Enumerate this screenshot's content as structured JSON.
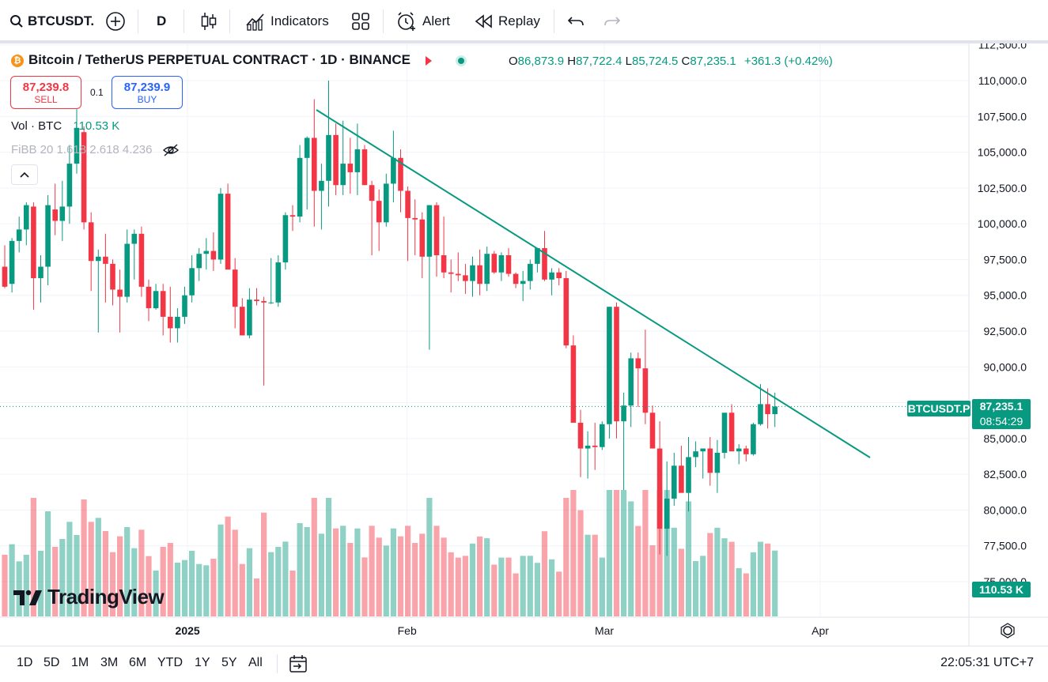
{
  "toolbar": {
    "symbol": "BTCUSDT.",
    "interval": "D",
    "indicators": "Indicators",
    "alert": "Alert",
    "replay": "Replay"
  },
  "legend": {
    "title": "Bitcoin / TetherUS PERPETUAL CONTRACT · 1D · BINANCE",
    "o_key": "O",
    "o_val": "86,873.9",
    "h_key": "H",
    "h_val": "87,722.4",
    "l_key": "L",
    "l_val": "85,724.5",
    "c_key": "C",
    "c_val": "87,235.1",
    "change": "+361.3 (+0.42%)"
  },
  "trade": {
    "sell_price": "87,239.8",
    "sell_label": "SELL",
    "buy_price": "87,239.9",
    "buy_label": "BUY",
    "spread": "0.1"
  },
  "volume_legend": {
    "label": "Vol · BTC",
    "value": "110.53 K"
  },
  "fibb_legend": "FiBB 20 1.618 2.618 4.236",
  "price_axis": {
    "labels": [
      "112,500.0",
      "110,000.0",
      "107,500.0",
      "105,000.0",
      "102,500.0",
      "100,000.0",
      "97,500.0",
      "95,000.0",
      "92,500.0",
      "90,000.0",
      "87,500.0",
      "85,000.0",
      "82,500.0",
      "80,000.0",
      "77,500.0",
      "75,000.0"
    ],
    "current_symbol": "BTCUSDT.P",
    "current_price": "87,235.1",
    "countdown": "08:54:29",
    "volume_tag": "110.53 K"
  },
  "time_axis": {
    "labels": [
      "2025",
      "Feb",
      "Mar",
      "Apr"
    ]
  },
  "ranges": [
    "1D",
    "5D",
    "1M",
    "3M",
    "6M",
    "YTD",
    "1Y",
    "5Y",
    "All"
  ],
  "clock": "22:05:31 UTC+7",
  "logo_text": "TradingView",
  "colors": {
    "up": "#089981",
    "down": "#f23645",
    "trendline": "#089981"
  },
  "chart_data": {
    "type": "candlestick",
    "interval": "1D",
    "ylim": [
      73000,
      113500
    ],
    "trendline": [
      [
        0,
        107800
      ],
      [
        78,
        83700
      ]
    ],
    "candles": [
      {
        "o": 97000,
        "h": 98500,
        "l": 95500,
        "c": 95600
      },
      {
        "o": 95800,
        "h": 99000,
        "l": 95200,
        "c": 98800
      },
      {
        "o": 98800,
        "h": 100500,
        "l": 98000,
        "c": 99600
      },
      {
        "o": 99600,
        "h": 101500,
        "l": 98500,
        "c": 101300
      },
      {
        "o": 101200,
        "h": 101500,
        "l": 94000,
        "c": 96200
      },
      {
        "o": 96200,
        "h": 97800,
        "l": 94500,
        "c": 97000
      },
      {
        "o": 97000,
        "h": 102000,
        "l": 95700,
        "c": 101300
      },
      {
        "o": 101000,
        "h": 102800,
        "l": 99200,
        "c": 100200
      },
      {
        "o": 100200,
        "h": 103000,
        "l": 98800,
        "c": 101200
      },
      {
        "o": 101200,
        "h": 105500,
        "l": 100000,
        "c": 104200
      },
      {
        "o": 104200,
        "h": 108000,
        "l": 103500,
        "c": 106700
      },
      {
        "o": 106400,
        "h": 106800,
        "l": 99600,
        "c": 100100
      },
      {
        "o": 100100,
        "h": 100800,
        "l": 95300,
        "c": 97400
      },
      {
        "o": 97400,
        "h": 98200,
        "l": 92400,
        "c": 97700
      },
      {
        "o": 97700,
        "h": 99300,
        "l": 94500,
        "c": 97200
      },
      {
        "o": 97200,
        "h": 97500,
        "l": 94300,
        "c": 95400
      },
      {
        "o": 95400,
        "h": 96800,
        "l": 92400,
        "c": 94900
      },
      {
        "o": 94900,
        "h": 99600,
        "l": 94500,
        "c": 98600
      },
      {
        "o": 98600,
        "h": 99600,
        "l": 96100,
        "c": 99300
      },
      {
        "o": 99300,
        "h": 99800,
        "l": 94900,
        "c": 95600
      },
      {
        "o": 95600,
        "h": 96100,
        "l": 93200,
        "c": 94100
      },
      {
        "o": 94100,
        "h": 95800,
        "l": 94000,
        "c": 95300
      },
      {
        "o": 95300,
        "h": 95800,
        "l": 92200,
        "c": 93500
      },
      {
        "o": 93500,
        "h": 95600,
        "l": 91700,
        "c": 92700
      },
      {
        "o": 92700,
        "h": 94100,
        "l": 91700,
        "c": 93500
      },
      {
        "o": 93500,
        "h": 95600,
        "l": 93000,
        "c": 95000
      },
      {
        "o": 95000,
        "h": 97800,
        "l": 94500,
        "c": 96900
      },
      {
        "o": 96900,
        "h": 98300,
        "l": 96000,
        "c": 97900
      },
      {
        "o": 97900,
        "h": 99000,
        "l": 96800,
        "c": 98100
      },
      {
        "o": 98100,
        "h": 99400,
        "l": 96700,
        "c": 97500
      },
      {
        "o": 97500,
        "h": 102500,
        "l": 97200,
        "c": 102100
      },
      {
        "o": 102100,
        "h": 102800,
        "l": 96900,
        "c": 96800
      },
      {
        "o": 96800,
        "h": 97600,
        "l": 92700,
        "c": 94200
      },
      {
        "o": 94200,
        "h": 94800,
        "l": 92500,
        "c": 92200
      },
      {
        "o": 92200,
        "h": 95500,
        "l": 92000,
        "c": 94700
      },
      {
        "o": 94700,
        "h": 95500,
        "l": 94300,
        "c": 94600
      },
      {
        "o": 94600,
        "h": 94900,
        "l": 88700,
        "c": 94500
      },
      {
        "o": 94500,
        "h": 97600,
        "l": 94400,
        "c": 94500
      },
      {
        "o": 94500,
        "h": 97800,
        "l": 94200,
        "c": 97300
      },
      {
        "o": 97300,
        "h": 100800,
        "l": 96800,
        "c": 100600
      },
      {
        "o": 100600,
        "h": 101300,
        "l": 99500,
        "c": 100500
      },
      {
        "o": 100500,
        "h": 105500,
        "l": 100100,
        "c": 104600
      },
      {
        "o": 104600,
        "h": 106100,
        "l": 101000,
        "c": 106000
      },
      {
        "o": 106000,
        "h": 108700,
        "l": 99800,
        "c": 102300
      },
      {
        "o": 102300,
        "h": 104200,
        "l": 99600,
        "c": 103000
      },
      {
        "o": 103000,
        "h": 110000,
        "l": 101200,
        "c": 106200
      },
      {
        "o": 106200,
        "h": 107000,
        "l": 102000,
        "c": 102700
      },
      {
        "o": 102700,
        "h": 107200,
        "l": 102000,
        "c": 104200
      },
      {
        "o": 104200,
        "h": 106000,
        "l": 102100,
        "c": 103600
      },
      {
        "o": 103600,
        "h": 107000,
        "l": 102000,
        "c": 105200
      },
      {
        "o": 105200,
        "h": 105500,
        "l": 102700,
        "c": 102700
      },
      {
        "o": 102700,
        "h": 103000,
        "l": 97800,
        "c": 101600
      },
      {
        "o": 101600,
        "h": 102400,
        "l": 98100,
        "c": 100100
      },
      {
        "o": 100100,
        "h": 103500,
        "l": 99800,
        "c": 102800
      },
      {
        "o": 102800,
        "h": 106500,
        "l": 101500,
        "c": 104600
      },
      {
        "o": 104600,
        "h": 105200,
        "l": 100800,
        "c": 102300
      },
      {
        "o": 102300,
        "h": 102600,
        "l": 97400,
        "c": 100400
      },
      {
        "o": 100400,
        "h": 101700,
        "l": 97800,
        "c": 100300
      },
      {
        "o": 100300,
        "h": 100800,
        "l": 96200,
        "c": 97700
      },
      {
        "o": 97700,
        "h": 101300,
        "l": 91200,
        "c": 101300
      },
      {
        "o": 101300,
        "h": 101500,
        "l": 96300,
        "c": 97800
      },
      {
        "o": 97800,
        "h": 100500,
        "l": 96200,
        "c": 96600
      }
    ]
  }
}
